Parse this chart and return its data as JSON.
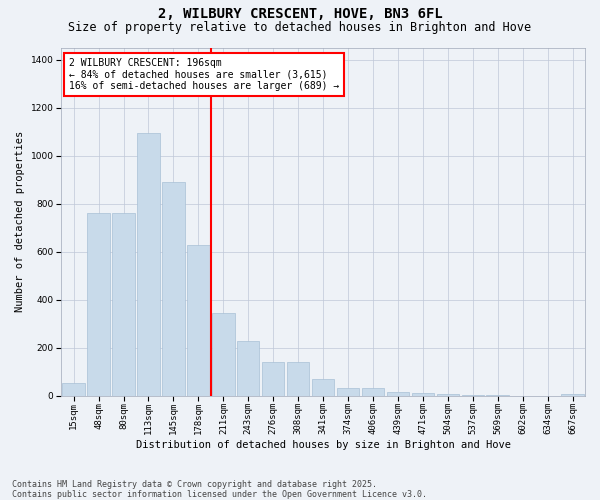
{
  "title": "2, WILBURY CRESCENT, HOVE, BN3 6FL",
  "subtitle": "Size of property relative to detached houses in Brighton and Hove",
  "xlabel": "Distribution of detached houses by size in Brighton and Hove",
  "ylabel": "Number of detached properties",
  "categories": [
    "15sqm",
    "48sqm",
    "80sqm",
    "113sqm",
    "145sqm",
    "178sqm",
    "211sqm",
    "243sqm",
    "276sqm",
    "308sqm",
    "341sqm",
    "374sqm",
    "406sqm",
    "439sqm",
    "471sqm",
    "504sqm",
    "537sqm",
    "569sqm",
    "602sqm",
    "634sqm",
    "667sqm"
  ],
  "values": [
    55,
    760,
    760,
    1095,
    890,
    630,
    345,
    230,
    140,
    140,
    70,
    35,
    35,
    18,
    12,
    7,
    3,
    2,
    1,
    0,
    10
  ],
  "bar_color": "#c8daea",
  "bar_edge_color": "#a8c0d6",
  "vline_color": "red",
  "vline_position": 5.5,
  "annotation_text": "2 WILBURY CRESCENT: 196sqm\n← 84% of detached houses are smaller (3,615)\n16% of semi-detached houses are larger (689) →",
  "annotation_box_color": "white",
  "annotation_box_edge": "red",
  "ylim": [
    0,
    1450
  ],
  "yticks": [
    0,
    200,
    400,
    600,
    800,
    1000,
    1200,
    1400
  ],
  "background_color": "#eef2f7",
  "grid_color": "#c0c8d8",
  "footer_text": "Contains HM Land Registry data © Crown copyright and database right 2025.\nContains public sector information licensed under the Open Government Licence v3.0.",
  "title_fontsize": 10,
  "subtitle_fontsize": 8.5,
  "axis_label_fontsize": 7.5,
  "tick_fontsize": 6.5,
  "annotation_fontsize": 7,
  "footer_fontsize": 6
}
